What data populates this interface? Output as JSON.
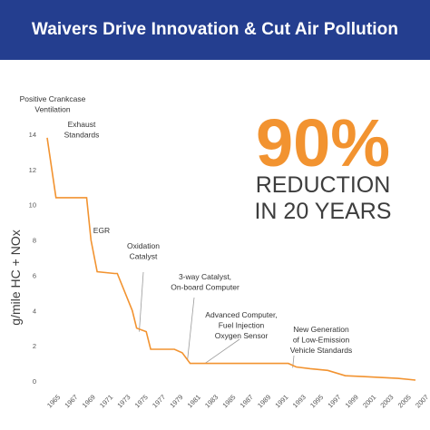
{
  "header": {
    "title": "Waivers Drive Innovation & Cut Air Pollution",
    "background": "#243e8f"
  },
  "callout": {
    "percent": "90%",
    "line1": "REDUCTION",
    "line2": "IN 20 YEARS",
    "percent_color": "#f29330",
    "text_color": "#3d3d3d"
  },
  "chart_data": {
    "type": "line",
    "title": "",
    "xlabel": "",
    "ylabel": "g/mile HC + NOx",
    "ylim": [
      0,
      14
    ],
    "xlim": [
      1965,
      2007
    ],
    "y_ticks": [
      0,
      2,
      4,
      6,
      8,
      10,
      12,
      14
    ],
    "x_ticks": [
      "1965",
      "1967",
      "1969",
      "1971",
      "1973",
      "1975",
      "1977",
      "1979",
      "1981",
      "1983",
      "1985",
      "1987",
      "1989",
      "1991",
      "1993",
      "1995",
      "1997",
      "1999",
      "2001",
      "2003",
      "2005",
      "2007"
    ],
    "grid": false,
    "line_color": "#f29330",
    "series": [
      {
        "x": [
          1965,
          1966,
          1969,
          1969.5,
          1970,
          1970.7,
          1972.7,
          1973,
          1974.7,
          1975.2,
          1976.3,
          1976.8,
          1979.5,
          1980.4,
          1981.3,
          1992.5,
          1993.4,
          1995,
          1997,
          1999,
          2001,
          2003,
          2005,
          2007
        ],
        "y": [
          13.8,
          10.4,
          10.4,
          10.4,
          8.0,
          6.2,
          6.1,
          6.1,
          4.0,
          3.0,
          2.8,
          1.8,
          1.8,
          1.6,
          1.0,
          1.0,
          0.8,
          0.7,
          0.6,
          0.3,
          0.25,
          0.2,
          0.15,
          0.05
        ]
      }
    ],
    "annotations": [
      {
        "id": "pcv",
        "lines": [
          "Positive Crankcase",
          "Ventilation"
        ],
        "x": 1965,
        "y": 13.8
      },
      {
        "id": "exhaust",
        "lines": [
          "Exhaust",
          "Standards"
        ],
        "x": 1969.5,
        "y": 10.4
      },
      {
        "id": "egr",
        "lines": [
          "EGR"
        ],
        "x": 1971.5,
        "y": 6.1
      },
      {
        "id": "oxidation",
        "lines": [
          "Oxidation",
          "Catalyst"
        ],
        "x": 1975.5,
        "y": 2.8
      },
      {
        "id": "threeway",
        "lines": [
          "3-way Catalyst,",
          "On-board Computer"
        ],
        "x": 1981,
        "y": 1.2
      },
      {
        "id": "advanced",
        "lines": [
          "Advanced Computer,",
          "Fuel Injection",
          "Oxygen Sensor"
        ],
        "x": 1983,
        "y": 1.0
      },
      {
        "id": "lev",
        "lines": [
          "New Generation",
          "of Low-Emission",
          "Vehicle Standards"
        ],
        "x": 1993,
        "y": 0.75
      }
    ]
  }
}
